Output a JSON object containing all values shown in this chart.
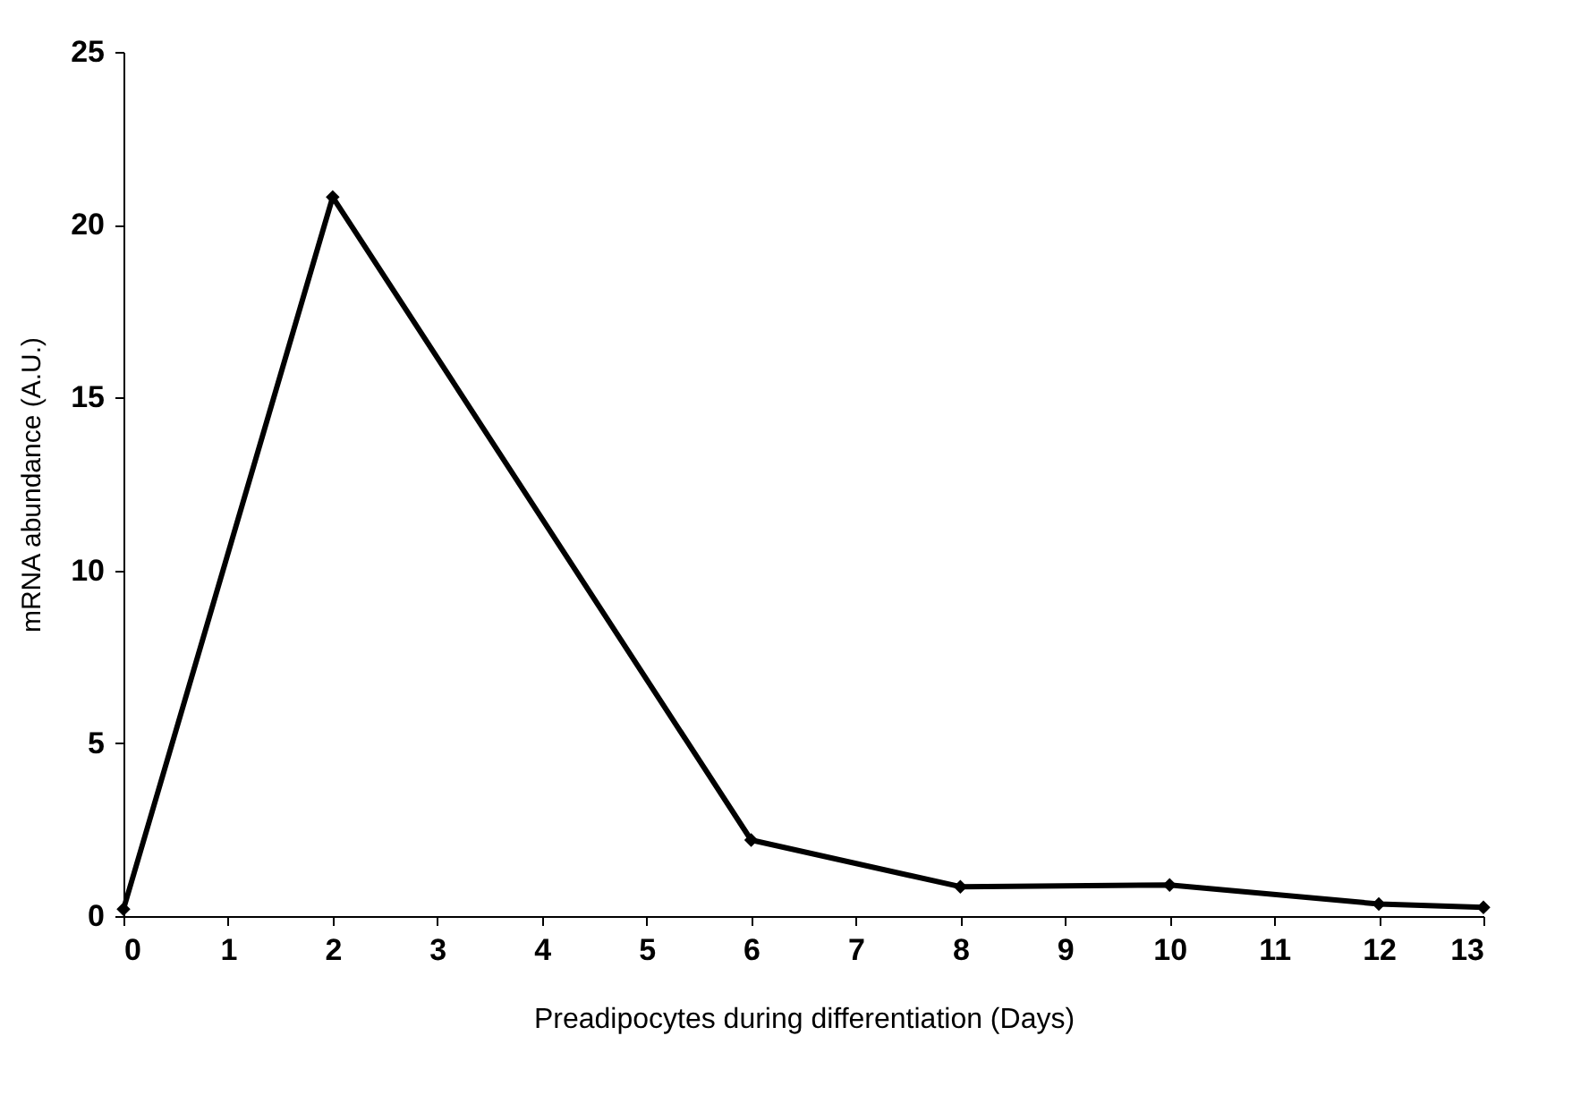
{
  "chart_data": {
    "type": "line",
    "xlabel": "Preadipocytes during differentiation (Days)",
    "ylabel": "mRNA abundance  (A.U.)",
    "x": [
      0,
      2,
      6,
      8,
      10,
      12,
      13
    ],
    "series": [
      {
        "color": "#000000",
        "values": [
          0.2,
          20.8,
          2.2,
          0.85,
          0.9,
          0.35,
          0.25
        ]
      }
    ],
    "xlim": [
      0,
      13
    ],
    "xticks": [
      0,
      1,
      2,
      3,
      4,
      5,
      6,
      7,
      8,
      9,
      10,
      11,
      12,
      13
    ],
    "ylim": [
      0,
      25
    ],
    "yticks": [
      0,
      5,
      10,
      15,
      20,
      25
    ],
    "grid": false,
    "marker": "diamond",
    "line_style": "solid"
  }
}
